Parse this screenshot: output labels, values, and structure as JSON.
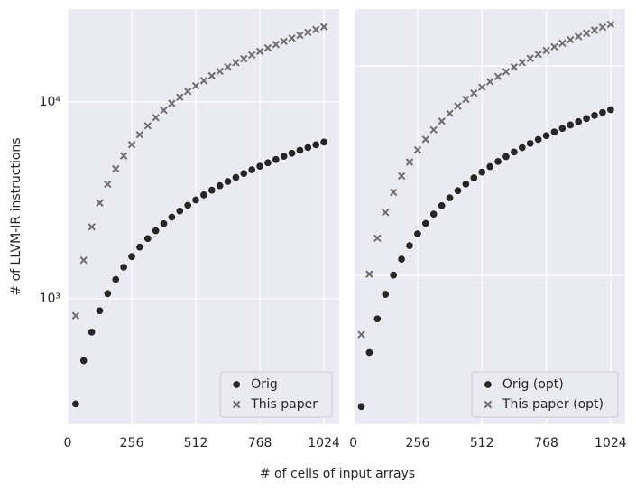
{
  "xlabel": "# of cells of input arrays",
  "ylabel": "# of LLVM-IR instructions",
  "chart_data": [
    {
      "type": "scatter",
      "log_y": true,
      "grid": true,
      "legend": "lower right",
      "show_ytick_labels": true,
      "xlim": [
        0,
        1085
      ],
      "xticks": [
        0,
        256,
        512,
        768,
        1024
      ],
      "ylim": [
        230,
        29600
      ],
      "yticks": [
        {
          "value": 1000,
          "label": "10³"
        },
        {
          "value": 10000,
          "label": "10⁴"
        }
      ],
      "x": [
        32,
        64,
        96,
        128,
        160,
        192,
        224,
        256,
        288,
        320,
        352,
        384,
        416,
        448,
        480,
        512,
        544,
        576,
        608,
        640,
        672,
        704,
        736,
        768,
        800,
        832,
        864,
        896,
        928,
        960,
        992,
        1024
      ],
      "series": [
        {
          "name": "Orig",
          "color": "#262626",
          "marker": "o",
          "values": [
            292,
            484,
            676,
            868,
            1060,
            1252,
            1444,
            1636,
            1828,
            2020,
            2212,
            2404,
            2596,
            2788,
            2980,
            3172,
            3364,
            3556,
            3748,
            3940,
            4132,
            4324,
            4516,
            4708,
            4900,
            5092,
            5284,
            5476,
            5668,
            5860,
            6052,
            6244
          ]
        },
        {
          "name": "This paper",
          "color": "#6e6e6e",
          "marker": "x",
          "values": [
            819,
            1568,
            2316,
            3065,
            3814,
            4563,
            5312,
            6060,
            6809,
            7558,
            8307,
            9056,
            9804,
            10553,
            11302,
            12051,
            12800,
            13548,
            14297,
            15046,
            15795,
            16544,
            17292,
            18041,
            18790,
            19539,
            20288,
            21036,
            21785,
            22534,
            23283,
            24032
          ]
        }
      ]
    },
    {
      "type": "scatter",
      "log_y": true,
      "grid": true,
      "legend": "lower right",
      "show_ytick_labels": false,
      "xlim": [
        5,
        1082
      ],
      "xticks": [
        0,
        256,
        512,
        768,
        1024
      ],
      "ylim": [
        195,
        18700
      ],
      "yticks": [
        1000,
        10000
      ],
      "x": [
        32,
        64,
        96,
        128,
        160,
        192,
        224,
        256,
        288,
        320,
        352,
        384,
        416,
        448,
        480,
        512,
        544,
        576,
        608,
        640,
        672,
        704,
        736,
        768,
        800,
        832,
        864,
        896,
        928,
        960,
        992,
        1024
      ],
      "series": [
        {
          "name": "Orig (opt)",
          "color": "#262626",
          "marker": "o",
          "values": [
            237,
            429,
            621,
            813,
            1005,
            1197,
            1389,
            1581,
            1773,
            1965,
            2157,
            2349,
            2541,
            2733,
            2925,
            3117,
            3309,
            3501,
            3693,
            3885,
            4077,
            4269,
            4461,
            4653,
            4845,
            5037,
            5229,
            5421,
            5613,
            5805,
            5997,
            6189
          ]
        },
        {
          "name": "This paper (opt)",
          "color": "#6e6e6e",
          "marker": "x",
          "values": [
            523,
            1016,
            1508,
            2001,
            2494,
            2987,
            3480,
            3972,
            4465,
            4958,
            5451,
            5944,
            6436,
            6929,
            7422,
            7915,
            8408,
            8900,
            9393,
            9886,
            10379,
            10872,
            11364,
            11857,
            12350,
            12843,
            13336,
            13828,
            14321,
            14814,
            15307,
            15800
          ]
        }
      ]
    }
  ]
}
